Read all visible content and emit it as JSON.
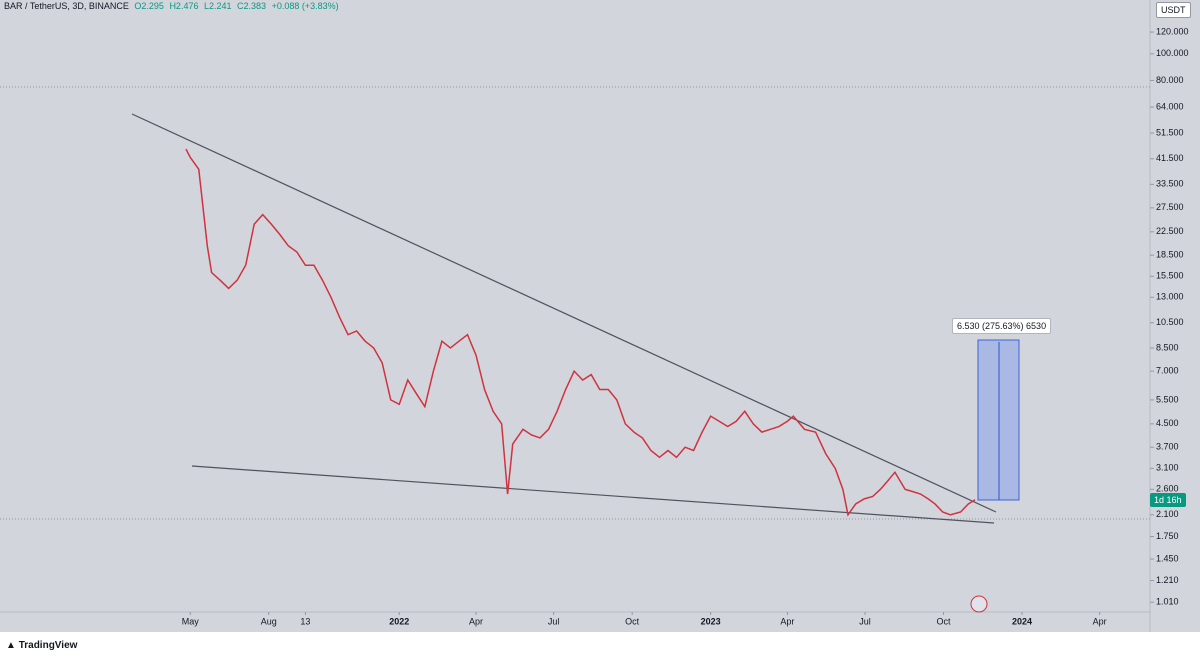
{
  "header": {
    "symbol": "BAR / TetherUS, 3D, BINANCE",
    "open": "O2.295",
    "high": "H2.476",
    "low": "L2.241",
    "close": "C2.383",
    "change": "+0.088 (+3.83%)"
  },
  "currency": "USDT",
  "countdown": "1d 16h",
  "measure_label": "6.530 (275.63%) 6530",
  "branding": "TradingView",
  "chart_data": {
    "type": "line",
    "log_scale": true,
    "color": "#d0323f",
    "x": [
      -5,
      0,
      10,
      20,
      25,
      35,
      45,
      55,
      65,
      75,
      85,
      95,
      105,
      115,
      125,
      135,
      145,
      155,
      165,
      175,
      185,
      195,
      205,
      215,
      225,
      235,
      245,
      255,
      265,
      275,
      285,
      295,
      305,
      315,
      325,
      335,
      345,
      355,
      365,
      372,
      378,
      390,
      400,
      410,
      420,
      430,
      440,
      450,
      460,
      470,
      480,
      490,
      500,
      510,
      520,
      530,
      540,
      550,
      560,
      570,
      580,
      590,
      600,
      610,
      620,
      630,
      640,
      650,
      660,
      670,
      680,
      690,
      700,
      707,
      720,
      733,
      745,
      756,
      765,
      771,
      780,
      790,
      800,
      809,
      818,
      826,
      838,
      847,
      856,
      865,
      873,
      882,
      891,
      903,
      912,
      920
    ],
    "values": [
      45,
      42,
      38,
      20,
      16,
      15,
      14,
      15,
      17,
      24,
      26,
      24,
      22,
      20,
      19,
      17,
      17,
      15,
      13,
      11,
      9.5,
      9.8,
      9,
      8.5,
      7.5,
      5.5,
      5.3,
      6.5,
      5.8,
      5.2,
      7,
      9,
      8.5,
      9,
      9.5,
      8,
      6,
      5,
      4.5,
      2.5,
      3.8,
      4.3,
      4.1,
      4,
      4.3,
      5,
      6,
      7,
      6.5,
      6.8,
      6,
      6,
      5.5,
      4.5,
      4.2,
      4,
      3.6,
      3.4,
      3.6,
      3.4,
      3.7,
      3.6,
      4.2,
      4.8,
      4.6,
      4.4,
      4.6,
      5.0,
      4.5,
      4.2,
      4.3,
      4.4,
      4.6,
      4.8,
      4.3,
      4.2,
      3.5,
      3.1,
      2.6,
      2.1,
      2.3,
      2.4,
      2.45,
      2.6,
      2.8,
      3.0,
      2.6,
      2.55,
      2.5,
      2.4,
      2.3,
      2.15,
      2.1,
      2.15,
      2.3,
      2.383
    ],
    "xlim": [
      -223,
      1125
    ],
    "ylim": [
      0.93,
      157
    ],
    "yticks": [
      {
        "value": 120,
        "label": "120.000"
      },
      {
        "value": 100,
        "label": "100.000"
      },
      {
        "value": 80,
        "label": "80.000"
      },
      {
        "value": 64,
        "label": "64.000"
      },
      {
        "value": 51.5,
        "label": "51.500"
      },
      {
        "value": 41.5,
        "label": "41.500"
      },
      {
        "value": 33.5,
        "label": "33.500"
      },
      {
        "value": 27.5,
        "label": "27.500"
      },
      {
        "value": 22.5,
        "label": "22.500"
      },
      {
        "value": 18.5,
        "label": "18.500"
      },
      {
        "value": 15.5,
        "label": "15.500"
      },
      {
        "value": 13,
        "label": "13.000"
      },
      {
        "value": 10.5,
        "label": "10.500"
      },
      {
        "value": 8.5,
        "label": "8.500"
      },
      {
        "value": 7,
        "label": "7.000"
      },
      {
        "value": 5.5,
        "label": "5.500"
      },
      {
        "value": 4.5,
        "label": "4.500"
      },
      {
        "value": 3.7,
        "label": "3.700"
      },
      {
        "value": 3.1,
        "label": "3.100"
      },
      {
        "value": 2.6,
        "label": "2.600"
      },
      {
        "value": 2.1,
        "label": "2.100"
      },
      {
        "value": 1.75,
        "label": "1.750"
      },
      {
        "value": 1.45,
        "label": "1.450"
      },
      {
        "value": 1.21,
        "label": "1.210"
      },
      {
        "value": 1.01,
        "label": "1.010"
      }
    ],
    "xticks": [
      {
        "value": 0,
        "label": "May"
      },
      {
        "value": 92,
        "label": "Aug"
      },
      {
        "value": 135,
        "label": "13"
      },
      {
        "value": 245,
        "label": "2022"
      },
      {
        "value": 335,
        "label": "Apr"
      },
      {
        "value": 426,
        "label": "Jul"
      },
      {
        "value": 518,
        "label": "Oct"
      },
      {
        "value": 610,
        "label": "2023"
      },
      {
        "value": 700,
        "label": "Apr"
      },
      {
        "value": 791,
        "label": "Jul"
      },
      {
        "value": 883,
        "label": "Oct"
      },
      {
        "value": 975,
        "label": "2024"
      },
      {
        "value": 1066,
        "label": "Apr"
      }
    ]
  }
}
